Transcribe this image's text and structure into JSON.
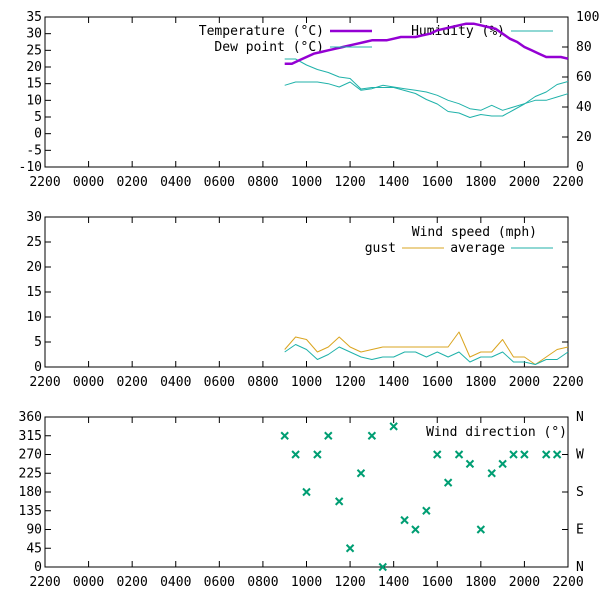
{
  "x_tick_labels": [
    "2200",
    "0000",
    "0200",
    "0400",
    "0600",
    "0800",
    "1000",
    "1200",
    "1400",
    "1600",
    "1800",
    "2000",
    "2200"
  ],
  "chart_data": [
    {
      "type": "line",
      "xlim": [
        -2,
        22
      ],
      "y_left": {
        "range": [
          -10,
          35
        ],
        "ticks": [
          "-10",
          "-5",
          "0",
          "5",
          "10",
          "15",
          "20",
          "25",
          "30",
          "35"
        ]
      },
      "y_right": {
        "range": [
          0,
          100
        ],
        "ticks": [
          "0",
          "20",
          "40",
          "60",
          "80",
          "100"
        ]
      },
      "grid": false,
      "legend_position": "top-right",
      "series": [
        {
          "name": "Temperature (°C)",
          "axis": "left",
          "color": "#9400d3",
          "stroke_weight": "thick",
          "x": [
            9,
            9.33,
            9.67,
            10,
            10.33,
            10.67,
            11,
            11.33,
            11.67,
            12,
            12.33,
            12.67,
            13,
            13.33,
            13.67,
            14,
            14.33,
            14.67,
            15,
            15.33,
            15.67,
            16,
            16.33,
            16.67,
            17,
            17.33,
            17.67,
            18,
            18.33,
            18.67,
            19,
            19.33,
            19.67,
            20,
            20.33,
            20.67,
            21,
            21.33,
            21.67,
            22
          ],
          "values": [
            21,
            21,
            22,
            23,
            24,
            24.5,
            25,
            25.5,
            26,
            26.5,
            27,
            27.5,
            28,
            28,
            28,
            28.5,
            29,
            29,
            29,
            29.5,
            30,
            31,
            31.5,
            32,
            32.5,
            33,
            33,
            32.5,
            32,
            31.5,
            30,
            28.5,
            27.5,
            26,
            25,
            24,
            23,
            23,
            23,
            22.5
          ]
        },
        {
          "name": "Dew point (°C)",
          "axis": "left",
          "color": "#20b2aa",
          "stroke_weight": "thin",
          "x": [
            9,
            9.5,
            10,
            10.5,
            11,
            11.5,
            12,
            12.5,
            13,
            13.5,
            14,
            14.5,
            15,
            15.5,
            16,
            16.5,
            17,
            17.5,
            18,
            18.5,
            19,
            19.5,
            20,
            20.5,
            21,
            21.5,
            22
          ],
          "values": [
            14.5,
            15.5,
            15.5,
            15.5,
            15,
            14,
            15.5,
            13,
            13.5,
            14.5,
            14,
            13.5,
            13,
            12.5,
            11.5,
            10,
            9,
            7.5,
            7,
            8.5,
            7,
            8,
            9,
            10,
            10,
            11,
            12
          ]
        },
        {
          "name": "Humidity (%)",
          "axis": "right",
          "color": "#20b2aa",
          "stroke_weight": "thin",
          "x": [
            9,
            9.5,
            10,
            10.5,
            11,
            11.5,
            12,
            12.5,
            13,
            13.5,
            14,
            14.5,
            15,
            15.5,
            16,
            16.5,
            17,
            17.5,
            18,
            18.5,
            19,
            19.5,
            20,
            20.5,
            21,
            21.5,
            22
          ],
          "values": [
            72,
            72,
            68,
            65,
            63,
            60,
            59,
            52,
            53,
            53,
            53,
            51,
            49,
            45,
            42,
            37,
            36,
            33,
            35,
            34,
            34,
            38,
            42,
            47,
            50,
            55,
            57
          ]
        }
      ]
    },
    {
      "type": "line",
      "xlim": [
        -2,
        22
      ],
      "ylim": [
        0,
        30
      ],
      "y_ticks": [
        "0",
        "5",
        "10",
        "15",
        "20",
        "25",
        "30"
      ],
      "legend_title": "Wind speed (mph)",
      "legend_position": "top-right",
      "series": [
        {
          "name": "gust",
          "color": "#daa520",
          "x": [
            9,
            9.5,
            10,
            10.5,
            11,
            11.5,
            12,
            12.5,
            13,
            13.5,
            14,
            14.5,
            15,
            15.5,
            16,
            16.5,
            17,
            17.5,
            18,
            18.5,
            19,
            19.5,
            20,
            20.5,
            21,
            21.5,
            22
          ],
          "values": [
            3.5,
            6,
            5.5,
            3,
            4,
            6,
            4,
            3,
            3.5,
            4,
            4,
            4,
            4,
            4,
            4,
            4,
            7,
            2,
            3,
            3,
            5.5,
            2,
            2,
            0.5,
            2,
            3.5,
            4
          ]
        },
        {
          "name": "average",
          "color": "#20b2aa",
          "x": [
            9,
            9.5,
            10,
            10.5,
            11,
            11.5,
            12,
            12.5,
            13,
            13.5,
            14,
            14.5,
            15,
            15.5,
            16,
            16.5,
            17,
            17.5,
            18,
            18.5,
            19,
            19.5,
            20,
            20.5,
            21,
            21.5,
            22
          ],
          "values": [
            3,
            4.5,
            3.5,
            1.5,
            2.5,
            4,
            3,
            2,
            1.5,
            2,
            2,
            3,
            3,
            2,
            3,
            2,
            3,
            1,
            2,
            2,
            3,
            1,
            1,
            0.5,
            1.5,
            1.5,
            3
          ]
        }
      ]
    },
    {
      "type": "scatter",
      "xlim": [
        -2,
        22
      ],
      "ylim": [
        0,
        360
      ],
      "y_ticks": [
        "0",
        "45",
        "90",
        "135",
        "180",
        "225",
        "270",
        "315",
        "360"
      ],
      "y2_ticks": [
        "N",
        "E",
        "S",
        "W",
        "N"
      ],
      "legend_title": "Wind direction (°)",
      "legend_position": "top-right",
      "series": [
        {
          "name": "Wind direction (°)",
          "color": "#009e73",
          "marker": "x",
          "x": [
            9,
            9.5,
            10,
            10.5,
            11,
            11.5,
            12,
            12.5,
            13,
            13.5,
            14,
            14.5,
            15,
            15.5,
            16,
            16.5,
            17,
            17.5,
            18,
            18.5,
            19,
            19.5,
            20,
            21,
            21.5
          ],
          "values": [
            315,
            270,
            180,
            270,
            315,
            157.5,
            45,
            225,
            315,
            0,
            337.5,
            112.5,
            90,
            135,
            270,
            202.5,
            270,
            247.5,
            90,
            225,
            247.5,
            270,
            270,
            270,
            270
          ]
        }
      ]
    }
  ]
}
